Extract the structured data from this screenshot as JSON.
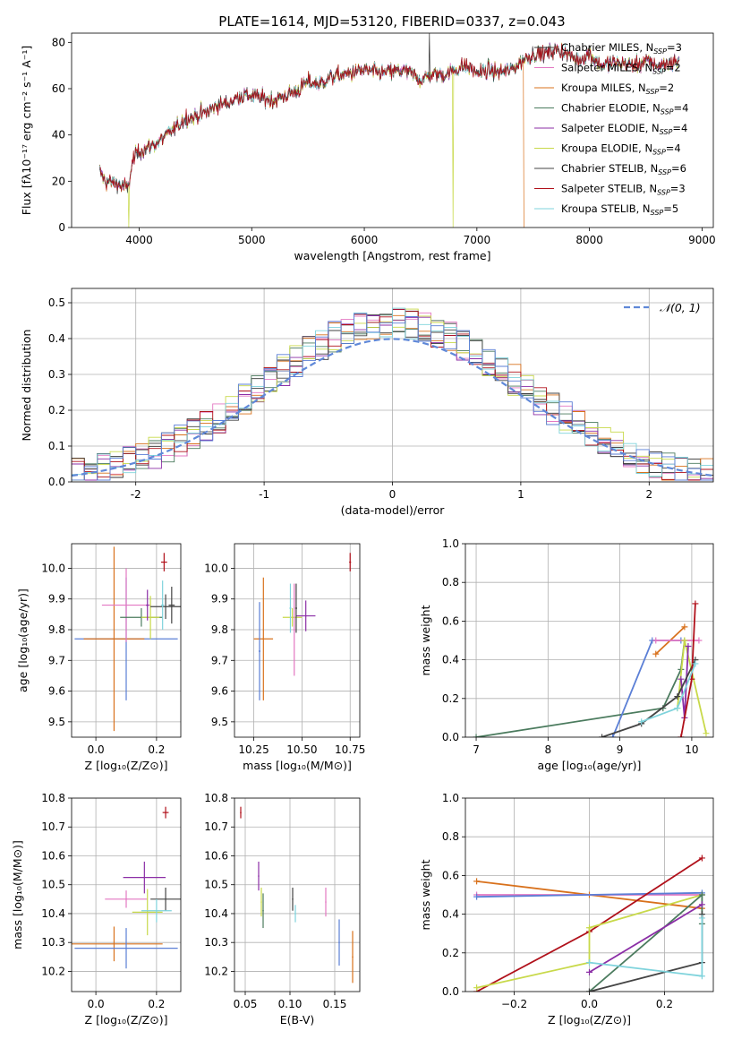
{
  "figure": {
    "title": "PLATE=1614, MJD=53120, FIBERID=0337, z=0.043"
  },
  "colors": {
    "c_miles": "#333333",
    "s_miles": "#e377c2",
    "k_miles": "#d8711c",
    "c_elodie": "#4b7b5e",
    "s_elodie": "#8b2ea6",
    "k_elodie": "#c8d94a",
    "c_stelib": "#444444",
    "s_stelib": "#b0101a",
    "k_stelib": "#7fd3dc",
    "blue": "#5b7fd6",
    "gauss": "#5f88d8"
  },
  "chart_data": [
    {
      "id": "spectrum",
      "type": "line",
      "xlabel": "wavelength [Angstrom, rest frame]",
      "ylabel": "Flux [fλ10⁻¹⁷ erg cm⁻² s⁻¹ A⁻¹]",
      "xlim": [
        3400,
        9100
      ],
      "ylim": [
        0,
        84
      ],
      "xticks": [
        4000,
        5000,
        6000,
        7000,
        8000,
        9000
      ],
      "yticks": [
        0,
        20,
        40,
        60,
        80
      ],
      "envelope": {
        "x": [
          3650,
          3700,
          3800,
          3900,
          3950,
          4000,
          4100,
          4200,
          4300,
          4400,
          4500,
          4600,
          4700,
          4800,
          4900,
          5000,
          5100,
          5200,
          5300,
          5400,
          5500,
          5600,
          5700,
          5800,
          5900,
          6000,
          6100,
          6200,
          6300,
          6400,
          6500,
          6600,
          6700,
          6800,
          6900,
          7000,
          7100,
          7200,
          7300,
          7400,
          7500,
          7600,
          7700,
          7800,
          7900,
          8000,
          8100,
          8200,
          8300,
          8400,
          8500,
          8600,
          8700,
          8800
        ],
        "y": [
          24,
          20,
          19,
          17,
          30,
          33,
          35,
          38,
          42,
          47,
          48,
          50,
          53,
          54,
          57,
          57,
          56,
          55,
          57,
          59,
          63,
          62,
          65,
          66,
          67,
          68,
          67,
          67,
          68,
          67,
          64,
          66,
          66,
          68,
          70,
          67,
          68,
          67,
          68,
          72,
          75,
          75,
          77,
          75,
          72,
          75,
          70,
          71,
          71,
          70,
          72,
          70,
          71,
          72
        ]
      },
      "legend": {
        "location": "upper right",
        "entries": [
          {
            "label": "Chabrier MILES, N",
            "sub": "SSP",
            "suffix": "=3",
            "color": "c_miles"
          },
          {
            "label": "Salpeter MILES, N",
            "sub": "SSP",
            "suffix": "=2",
            "color": "s_miles"
          },
          {
            "label": "Kroupa MILES, N",
            "sub": "SSP",
            "suffix": "=2",
            "color": "k_miles"
          },
          {
            "label": "Chabrier ELODIE, N",
            "sub": "SSP",
            "suffix": "=4",
            "color": "c_elodie"
          },
          {
            "label": "Salpeter ELODIE, N",
            "sub": "SSP",
            "suffix": "=4",
            "color": "s_elodie"
          },
          {
            "label": "Kroupa ELODIE, N",
            "sub": "SSP",
            "suffix": "=4",
            "color": "k_elodie"
          },
          {
            "label": "Chabrier STELIB, N",
            "sub": "SSP",
            "suffix": "=6",
            "color": "c_stelib"
          },
          {
            "label": "Salpeter STELIB, N",
            "sub": "SSP",
            "suffix": "=3",
            "color": "s_stelib"
          },
          {
            "label": "Kroupa STELIB, N",
            "sub": "SSP",
            "suffix": "=5",
            "color": "k_stelib"
          }
        ]
      }
    },
    {
      "id": "residuals",
      "type": "bar",
      "xlabel": "(data-model)/error",
      "ylabel": "Normed distribution",
      "xlim": [
        -2.5,
        2.5
      ],
      "ylim": [
        0,
        0.54
      ],
      "grid": true,
      "xticks": [
        -2,
        -1,
        0,
        1,
        2
      ],
      "yticks": [
        0.0,
        0.1,
        0.2,
        0.3,
        0.4,
        0.5
      ],
      "legend": {
        "location": "upper right",
        "label": "𝒩(0, 1)"
      }
    },
    {
      "id": "age_vs_Z",
      "type": "scatter",
      "xlabel": "Z [log₁₀(Z/Z⊙)]",
      "ylabel": "age  [log₁₀(age/yr)]",
      "xlim": [
        -0.08,
        0.28
      ],
      "ylim": [
        9.45,
        10.08
      ],
      "grid": true,
      "xticks": [
        0.0,
        0.2
      ],
      "yticks": [
        9.5,
        9.6,
        9.7,
        9.8,
        9.9,
        10.0
      ],
      "points": [
        {
          "x": 0.225,
          "y": 10.02,
          "xerr": 0.01,
          "yerr": 0.03,
          "color": "s_stelib"
        },
        {
          "x": 0.1,
          "y": 9.77,
          "xerr": 0.17,
          "yerr": 0.2,
          "color": "blue"
        },
        {
          "x": 0.06,
          "y": 9.77,
          "xerr": 0.1,
          "yerr": 0.3,
          "color": "k_miles"
        },
        {
          "x": 0.1,
          "y": 9.88,
          "xerr": 0.08,
          "yerr": 0.12,
          "color": "s_miles"
        },
        {
          "x": 0.15,
          "y": 9.84,
          "xerr": 0.07,
          "yerr": 0.03,
          "color": "c_elodie"
        },
        {
          "x": 0.18,
          "y": 9.84,
          "xerr": 0.03,
          "yerr": 0.07,
          "color": "k_elodie"
        },
        {
          "x": 0.23,
          "y": 9.875,
          "xerr": 0.05,
          "yerr": 0.04,
          "color": "c_stelib"
        },
        {
          "x": 0.25,
          "y": 9.88,
          "xerr": 0.01,
          "yerr": 0.06,
          "color": "c_stelib"
        },
        {
          "x": 0.22,
          "y": 9.88,
          "xerr": 0.005,
          "yerr": 0.08,
          "color": "k_stelib"
        },
        {
          "x": 0.17,
          "y": 9.88,
          "xerr": 0.005,
          "yerr": 0.05,
          "color": "s_elodie"
        }
      ]
    },
    {
      "id": "age_vs_mass",
      "type": "scatter",
      "xlabel": "mass [log₁₀(M/M⊙)]",
      "ylabel": "",
      "xlim": [
        10.15,
        10.8
      ],
      "ylim": [
        9.45,
        10.08
      ],
      "grid": true,
      "xticks": [
        10.25,
        10.5,
        10.75
      ],
      "tick_labels": [
        "10.25",
        "10.50",
        "10.75"
      ],
      "yticks": [
        9.5,
        9.6,
        9.7,
        9.8,
        9.9,
        10.0
      ],
      "points": [
        {
          "x": 10.75,
          "y": 10.02,
          "xerr": 0.005,
          "yerr": 0.03,
          "color": "s_stelib"
        },
        {
          "x": 10.3,
          "y": 9.77,
          "xerr": 0.05,
          "yerr": 0.2,
          "color": "k_miles"
        },
        {
          "x": 10.28,
          "y": 9.73,
          "xerr": 0.005,
          "yerr": 0.16,
          "color": "blue"
        },
        {
          "x": 10.45,
          "y": 9.84,
          "xerr": 0.05,
          "yerr": 0.03,
          "color": "k_elodie"
        },
        {
          "x": 10.52,
          "y": 9.845,
          "xerr": 0.05,
          "yerr": 0.05,
          "color": "s_elodie"
        },
        {
          "x": 10.46,
          "y": 9.8,
          "xerr": 0.005,
          "yerr": 0.15,
          "color": "s_miles"
        },
        {
          "x": 10.47,
          "y": 9.87,
          "xerr": 0.005,
          "yerr": 0.08,
          "color": "c_stelib"
        },
        {
          "x": 10.44,
          "y": 9.87,
          "xerr": 0.005,
          "yerr": 0.08,
          "color": "k_stelib"
        }
      ]
    },
    {
      "id": "mass_weight_vs_age",
      "type": "line",
      "xlabel": "age  [log₁₀(age/yr)]",
      "ylabel": "mass weight",
      "xlim": [
        6.85,
        10.3
      ],
      "ylim": [
        0,
        1
      ],
      "grid": true,
      "xticks": [
        7,
        8,
        9,
        10
      ],
      "yticks": [
        0.0,
        0.2,
        0.4,
        0.6,
        0.8,
        1.0
      ],
      "series": [
        {
          "color": "c_elodie",
          "x": [
            7.0,
            9.6,
            9.85,
            9.9
          ],
          "y": [
            0.0,
            0.15,
            0.35,
            0.5
          ]
        },
        {
          "color": "blue",
          "x": [
            8.9,
            9.45,
            9.85
          ],
          "y": [
            0.0,
            0.5,
            0.5
          ]
        },
        {
          "color": "k_miles",
          "x": [
            9.5,
            9.9
          ],
          "y": [
            0.43,
            0.57
          ]
        },
        {
          "color": "s_miles",
          "x": [
            9.5,
            10.1
          ],
          "y": [
            0.5,
            0.5
          ]
        },
        {
          "color": "k_elodie",
          "x": [
            9.8,
            9.9,
            10.2
          ],
          "y": [
            0.15,
            0.5,
            0.02
          ]
        },
        {
          "color": "s_elodie",
          "x": [
            9.85,
            9.9,
            9.95
          ],
          "y": [
            0.3,
            0.1,
            0.47
          ]
        },
        {
          "color": "c_stelib",
          "x": [
            8.75,
            9.3,
            9.8,
            10.05
          ],
          "y": [
            0.0,
            0.07,
            0.21,
            0.4
          ]
        },
        {
          "color": "s_stelib",
          "x": [
            9.85,
            10.0,
            10.05
          ],
          "y": [
            0.0,
            0.3,
            0.69
          ]
        },
        {
          "color": "k_stelib",
          "x": [
            9.3,
            9.8,
            10.05
          ],
          "y": [
            0.08,
            0.15,
            0.38
          ]
        }
      ]
    },
    {
      "id": "mass_vs_Z",
      "type": "scatter",
      "xlabel": "Z [log₁₀(Z/Z⊙)]",
      "ylabel": "mass [log₁₀(M/M⊙)]",
      "xlim": [
        -0.08,
        0.28
      ],
      "ylim": [
        10.13,
        10.8
      ],
      "grid": true,
      "xticks": [
        0.0,
        0.2
      ],
      "yticks": [
        10.2,
        10.3,
        10.4,
        10.5,
        10.6,
        10.7,
        10.8
      ],
      "points": [
        {
          "x": 0.23,
          "y": 10.75,
          "xerr": 0.01,
          "yerr": 0.02,
          "color": "s_stelib"
        },
        {
          "x": 0.16,
          "y": 10.525,
          "xerr": 0.07,
          "yerr": 0.055,
          "color": "s_elodie"
        },
        {
          "x": 0.1,
          "y": 10.45,
          "xerr": 0.07,
          "yerr": 0.03,
          "color": "s_miles"
        },
        {
          "x": 0.23,
          "y": 10.45,
          "xerr": 0.05,
          "yerr": 0.04,
          "color": "c_stelib"
        },
        {
          "x": 0.17,
          "y": 10.405,
          "xerr": 0.05,
          "yerr": 0.08,
          "color": "k_elodie"
        },
        {
          "x": 0.2,
          "y": 10.41,
          "xerr": 0.05,
          "yerr": 0.04,
          "color": "k_stelib"
        },
        {
          "x": 0.06,
          "y": 10.295,
          "xerr": 0.16,
          "yerr": 0.06,
          "color": "k_miles"
        },
        {
          "x": 0.1,
          "y": 10.28,
          "xerr": 0.17,
          "yerr": 0.07,
          "color": "blue"
        }
      ]
    },
    {
      "id": "mass_vs_EBV",
      "type": "scatter",
      "xlabel": "E(B-V)",
      "ylabel": "",
      "xlim": [
        0.038,
        0.178
      ],
      "ylim": [
        10.13,
        10.8
      ],
      "grid": true,
      "xticks": [
        0.05,
        0.1,
        0.15
      ],
      "yticks": [
        10.2,
        10.3,
        10.4,
        10.5,
        10.6,
        10.7,
        10.8
      ],
      "points": [
        {
          "x": 0.045,
          "y": 10.75,
          "yerr": 0.02,
          "color": "s_stelib"
        },
        {
          "x": 0.065,
          "y": 10.53,
          "yerr": 0.05,
          "color": "s_elodie"
        },
        {
          "x": 0.068,
          "y": 10.44,
          "yerr": 0.05,
          "color": "k_elodie"
        },
        {
          "x": 0.07,
          "y": 10.41,
          "yerr": 0.06,
          "color": "c_elodie"
        },
        {
          "x": 0.103,
          "y": 10.45,
          "yerr": 0.04,
          "color": "c_stelib"
        },
        {
          "x": 0.106,
          "y": 10.4,
          "yerr": 0.03,
          "color": "k_stelib"
        },
        {
          "x": 0.14,
          "y": 10.44,
          "yerr": 0.05,
          "color": "s_miles"
        },
        {
          "x": 0.155,
          "y": 10.3,
          "yerr": 0.08,
          "color": "blue"
        },
        {
          "x": 0.17,
          "y": 10.25,
          "yerr": 0.09,
          "color": "k_miles"
        }
      ]
    },
    {
      "id": "mass_weight_vs_Z",
      "type": "line",
      "xlabel": "Z [log₁₀(Z/Z⊙)]",
      "ylabel": "mass weight",
      "xlim": [
        -0.33,
        0.33
      ],
      "ylim": [
        0,
        1
      ],
      "grid": true,
      "xticks": [
        -0.2,
        0.0,
        0.2
      ],
      "tick_labels": [
        "−0.2",
        "0.0",
        "0.2"
      ],
      "yticks": [
        0.0,
        0.2,
        0.4,
        0.6,
        0.8,
        1.0
      ],
      "series": [
        {
          "color": "k_miles",
          "x": [
            -0.3,
            0.0,
            0.3
          ],
          "y": [
            0.57,
            0.5,
            0.43
          ]
        },
        {
          "color": "s_miles",
          "x": [
            -0.3,
            0.3
          ],
          "y": [
            0.5,
            0.5
          ]
        },
        {
          "color": "blue",
          "x": [
            -0.3,
            0.3
          ],
          "y": [
            0.49,
            0.51
          ]
        },
        {
          "color": "s_stelib",
          "x": [
            -0.3,
            0.0,
            0.3
          ],
          "y": [
            0.0,
            0.31,
            0.69
          ]
        },
        {
          "color": "k_elodie",
          "x": [
            -0.3,
            0.0,
            0.0,
            0.3
          ],
          "y": [
            0.02,
            0.15,
            0.33,
            0.5
          ]
        },
        {
          "color": "c_elodie",
          "x": [
            0.0,
            0.3,
            0.3
          ],
          "y": [
            0.0,
            0.5,
            0.35
          ]
        },
        {
          "color": "s_elodie",
          "x": [
            0.0,
            0.3
          ],
          "y": [
            0.1,
            0.45
          ]
        },
        {
          "color": "c_stelib",
          "x": [
            0.0,
            0.3,
            0.3
          ],
          "y": [
            0.0,
            0.15,
            0.4
          ]
        },
        {
          "color": "k_stelib",
          "x": [
            0.0,
            0.3,
            0.3
          ],
          "y": [
            0.15,
            0.08,
            0.38
          ]
        }
      ]
    }
  ]
}
